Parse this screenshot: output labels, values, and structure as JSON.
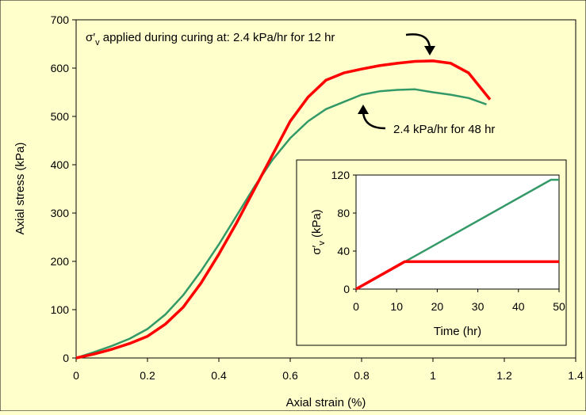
{
  "colors": {
    "background": "#ffffcc",
    "frame": "#000000",
    "series_48hr": "#339966",
    "series_12hr": "#ff0000"
  },
  "chart_data": [
    {
      "type": "line",
      "title": "",
      "xlabel": "Axial strain (%)",
      "ylabel": "Axial stress (kPa)",
      "xlim": [
        0,
        1.4
      ],
      "ylim": [
        0,
        700
      ],
      "xticks": [
        "0",
        "0.2",
        "0.4",
        "0.6",
        "0.8",
        "1",
        "1.2",
        "1.4"
      ],
      "yticks": [
        "0",
        "100",
        "200",
        "300",
        "400",
        "500",
        "600",
        "700"
      ],
      "grid": false,
      "legend": "none",
      "annotations": {
        "top_prefix": "σ′",
        "top_sub": "v",
        "top_rest": " applied during curing at: 2.4 kPa/hr for 12 hr",
        "bottom": "2.4 kPa/hr for 48 hr"
      },
      "series": [
        {
          "color": "#339966",
          "x": [
            0,
            0.05,
            0.1,
            0.15,
            0.2,
            0.25,
            0.3,
            0.35,
            0.4,
            0.45,
            0.5,
            0.55,
            0.6,
            0.65,
            0.7,
            0.75,
            0.8,
            0.85,
            0.9,
            0.95,
            1.0,
            1.05,
            1.1,
            1.15
          ],
          "y": [
            0,
            12,
            25,
            40,
            60,
            90,
            130,
            180,
            235,
            295,
            355,
            410,
            455,
            490,
            515,
            530,
            545,
            552,
            555,
            556,
            550,
            545,
            538,
            525
          ]
        },
        {
          "color": "#ff0000",
          "x": [
            0,
            0.05,
            0.1,
            0.15,
            0.2,
            0.25,
            0.3,
            0.35,
            0.4,
            0.45,
            0.5,
            0.55,
            0.6,
            0.65,
            0.7,
            0.75,
            0.8,
            0.85,
            0.9,
            0.95,
            1.0,
            1.05,
            1.1,
            1.16
          ],
          "y": [
            0,
            8,
            18,
            30,
            45,
            70,
            105,
            155,
            215,
            280,
            350,
            420,
            490,
            540,
            575,
            590,
            598,
            605,
            610,
            614,
            615,
            610,
            590,
            535
          ]
        }
      ]
    },
    {
      "type": "line",
      "title": "",
      "xlabel": "Time (hr)",
      "ylabel_prefix": "σ′",
      "ylabel_sub": "v",
      "ylabel_rest": " (kPa)",
      "xlim": [
        0,
        50
      ],
      "ylim": [
        0,
        120
      ],
      "xticks": [
        "0",
        "10",
        "20",
        "30",
        "40",
        "50"
      ],
      "yticks": [
        "0",
        "40",
        "80",
        "120"
      ],
      "grid": false,
      "legend": "none",
      "series": [
        {
          "color": "#339966",
          "x": [
            0,
            48,
            50
          ],
          "y": [
            0,
            115,
            115
          ]
        },
        {
          "color": "#ff0000",
          "x": [
            0,
            12,
            50
          ],
          "y": [
            0,
            28.8,
            28.8
          ]
        }
      ]
    }
  ]
}
